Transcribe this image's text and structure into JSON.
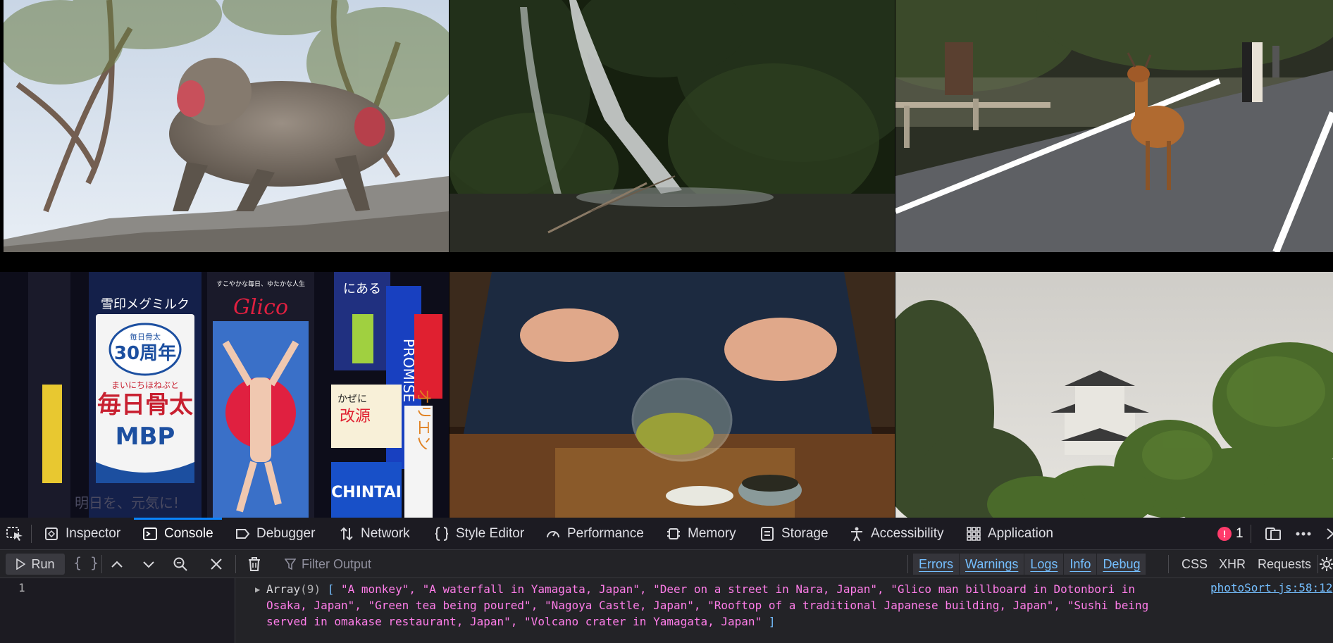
{
  "gallery": {
    "photos": [
      {
        "subject": "monkey"
      },
      {
        "subject": "waterfall"
      },
      {
        "subject": "deer"
      },
      {
        "subject": "billboards"
      },
      {
        "subject": "tea"
      },
      {
        "subject": "castle"
      }
    ],
    "billboard_texts": {
      "meg": "雪印メグミルク",
      "anniv_top": "毎日骨太",
      "anniv": "30周年",
      "kana": "まいにちほねぶと",
      "mainichi": "毎日骨太",
      "mbp": "MBP",
      "glico": "Glico",
      "tagline": "すこやかな毎日、ゆたかな人生",
      "promise": "PROMISE",
      "kaseni": "かぜに",
      "kaigen": "改源",
      "chintai": "CHINTAI",
      "orien": "オリエン",
      "niaru": "にある",
      "ashita": "明日を、元気に!"
    }
  },
  "devtools": {
    "tabs": [
      {
        "label": "Inspector",
        "icon": "inspector-icon"
      },
      {
        "label": "Console",
        "icon": "console-icon"
      },
      {
        "label": "Debugger",
        "icon": "debugger-icon"
      },
      {
        "label": "Network",
        "icon": "network-icon"
      },
      {
        "label": "Style Editor",
        "icon": "style-editor-icon"
      },
      {
        "label": "Performance",
        "icon": "performance-icon"
      },
      {
        "label": "Memory",
        "icon": "memory-icon"
      },
      {
        "label": "Storage",
        "icon": "storage-icon"
      },
      {
        "label": "Accessibility",
        "icon": "accessibility-icon"
      },
      {
        "label": "Application",
        "icon": "application-icon"
      }
    ],
    "active_tab": "Console",
    "error_count": "1",
    "toolbar": {
      "run_label": "Run",
      "braces_label": "{ }",
      "filter_placeholder": "Filter Output",
      "levels": [
        "Errors",
        "Warnings",
        "Logs",
        "Info",
        "Debug"
      ],
      "extras": [
        "CSS",
        "XHR",
        "Requests"
      ]
    },
    "editor": {
      "line_number": "1"
    },
    "log": {
      "array_name": "Array",
      "array_length": "(9)",
      "open_bracket": "[",
      "close_bracket": "]",
      "items": [
        "\"A monkey\"",
        "\"A waterfall in Yamagata, Japan\"",
        "\"Deer on a street in Nara, Japan\"",
        "\"Glico man billboard in Dotonbori in Osaka, Japan\"",
        "\"Green tea being poured\"",
        "\"Nagoya Castle, Japan\"",
        "\"Rooftop of a traditional Japanese building, Japan\"",
        "\"Sushi being served in omakase restaurant, Japan\"",
        "\"Volcano crater in Yamagata, Japan\""
      ],
      "source": "photoSort.js:58:12"
    },
    "colors": {
      "accent": "#0a84ff",
      "string": "#ff7de9",
      "link": "#75bfff",
      "error": "#ff3b6b"
    }
  }
}
